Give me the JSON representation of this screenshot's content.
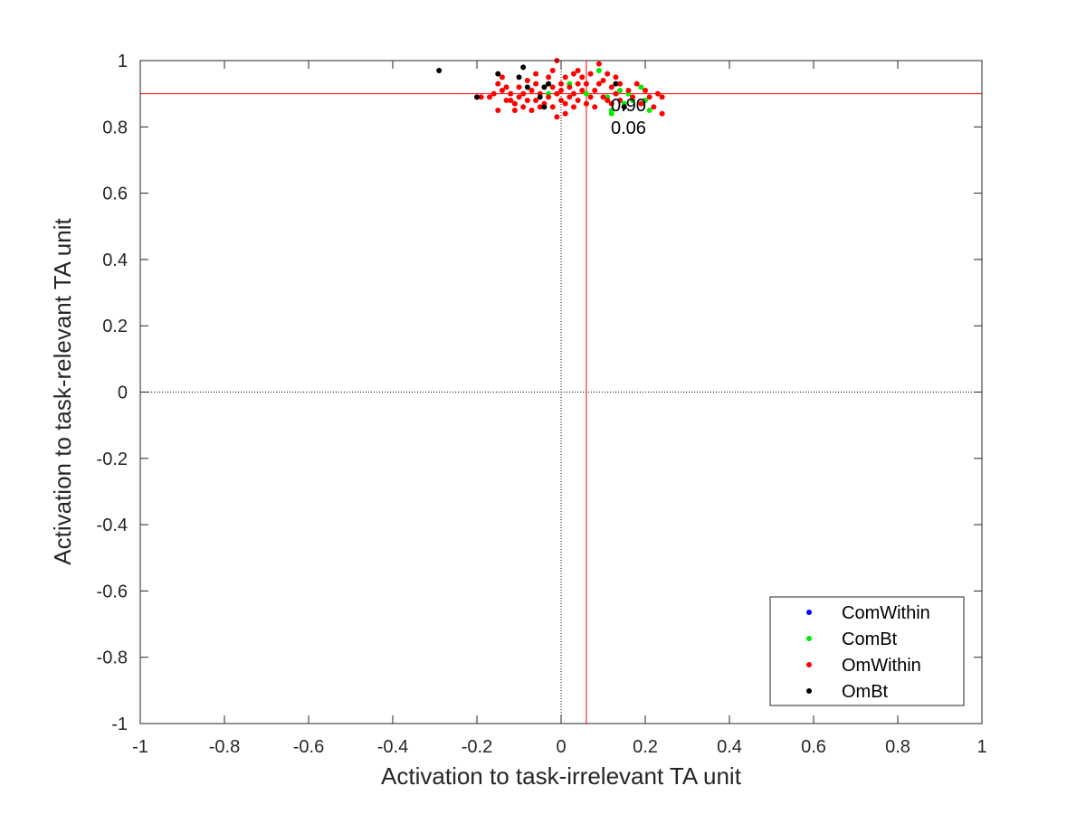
{
  "chart_data": {
    "type": "scatter",
    "title": "",
    "xlabel": "Activation to task-irrelevant TA unit",
    "ylabel": "Activation to task-relevant TA unit",
    "xlim": [
      -1,
      1
    ],
    "ylim": [
      -1,
      1
    ],
    "xticks": [
      "-1",
      "-0.8",
      "-0.6",
      "-0.4",
      "-0.2",
      "0",
      "0.2",
      "0.4",
      "0.6",
      "0.8",
      "1"
    ],
    "yticks": [
      "-1",
      "-0.8",
      "-0.6",
      "-0.4",
      "-0.2",
      "0",
      "0.2",
      "0.4",
      "0.6",
      "0.8",
      "1"
    ],
    "grid": false,
    "legend_position": "bottom-right",
    "reference_lines": {
      "zero_lines": {
        "style": "dotted",
        "color": "#000000"
      },
      "mean_x": 0.06,
      "mean_y": 0.9,
      "mean_color": "#ff0000"
    },
    "annotations": [
      "0.90",
      "0.06"
    ],
    "series": [
      {
        "name": "ComWithin",
        "color": "#0000ff",
        "points": []
      },
      {
        "name": "ComBt",
        "color": "#00ee00",
        "points": [
          [
            -0.03,
            0.9
          ],
          [
            0.02,
            0.93
          ],
          [
            0.06,
            0.9
          ],
          [
            0.09,
            0.97
          ],
          [
            0.11,
            0.89
          ],
          [
            0.12,
            0.85
          ],
          [
            0.12,
            0.84
          ],
          [
            0.14,
            0.91
          ],
          [
            0.15,
            0.87
          ],
          [
            0.16,
            0.9
          ],
          [
            0.17,
            0.88
          ],
          [
            0.19,
            0.92
          ],
          [
            0.21,
            0.85
          ],
          [
            0.2,
            0.88
          ]
        ]
      },
      {
        "name": "OmWithin",
        "color": "#ff0000",
        "points": [
          [
            -0.2,
            0.89
          ],
          [
            -0.19,
            0.89
          ],
          [
            -0.16,
            0.9
          ],
          [
            -0.15,
            0.93
          ],
          [
            -0.15,
            0.85
          ],
          [
            -0.14,
            0.95
          ],
          [
            -0.14,
            0.91
          ],
          [
            -0.13,
            0.92
          ],
          [
            -0.12,
            0.88
          ],
          [
            -0.12,
            0.9
          ],
          [
            -0.11,
            0.87
          ],
          [
            -0.11,
            0.85
          ],
          [
            -0.1,
            0.89
          ],
          [
            -0.1,
            0.92
          ],
          [
            -0.09,
            0.86
          ],
          [
            -0.09,
            0.9
          ],
          [
            -0.08,
            0.94
          ],
          [
            -0.08,
            0.88
          ],
          [
            -0.07,
            0.91
          ],
          [
            -0.07,
            0.85
          ],
          [
            -0.06,
            0.88
          ],
          [
            -0.06,
            0.93
          ],
          [
            -0.05,
            0.9
          ],
          [
            -0.05,
            0.86
          ],
          [
            -0.04,
            0.92
          ],
          [
            -0.04,
            0.87
          ],
          [
            -0.03,
            0.95
          ],
          [
            -0.03,
            0.89
          ],
          [
            -0.02,
            0.97
          ],
          [
            -0.02,
            0.92
          ],
          [
            -0.02,
            0.86
          ],
          [
            -0.01,
            1.0
          ],
          [
            -0.01,
            0.9
          ],
          [
            -0.01,
            0.83
          ],
          [
            0.0,
            0.93
          ],
          [
            0.0,
            0.88
          ],
          [
            0.0,
            0.91
          ],
          [
            0.01,
            0.95
          ],
          [
            0.01,
            0.87
          ],
          [
            0.02,
            0.92
          ],
          [
            0.02,
            0.89
          ],
          [
            0.03,
            0.96
          ],
          [
            0.03,
            0.9
          ],
          [
            0.03,
            0.86
          ],
          [
            0.04,
            0.93
          ],
          [
            0.04,
            0.88
          ],
          [
            0.05,
            0.95
          ],
          [
            0.05,
            0.91
          ],
          [
            0.06,
            0.87
          ],
          [
            0.06,
            0.93
          ],
          [
            0.07,
            0.89
          ],
          [
            0.07,
            0.96
          ],
          [
            0.08,
            0.91
          ],
          [
            0.08,
            0.86
          ],
          [
            0.09,
            0.99
          ],
          [
            0.09,
            0.93
          ],
          [
            0.1,
            0.89
          ],
          [
            0.1,
            0.94
          ],
          [
            0.11,
            0.88
          ],
          [
            0.12,
            0.92
          ],
          [
            0.12,
            0.87
          ],
          [
            0.13,
            0.95
          ],
          [
            0.13,
            0.9
          ],
          [
            0.14,
            0.88
          ],
          [
            0.14,
            0.93
          ],
          [
            0.15,
            0.86
          ],
          [
            0.16,
            0.91
          ],
          [
            0.17,
            0.89
          ],
          [
            0.18,
            0.93
          ],
          [
            0.19,
            0.87
          ],
          [
            0.2,
            0.91
          ],
          [
            0.21,
            0.89
          ],
          [
            0.22,
            0.86
          ],
          [
            0.23,
            0.9
          ],
          [
            0.24,
            0.89
          ],
          [
            0.24,
            0.84
          ],
          [
            -0.17,
            0.89
          ],
          [
            -0.13,
            0.88
          ],
          [
            -0.06,
            0.96
          ],
          [
            0.01,
            0.84
          ],
          [
            0.04,
            0.97
          ],
          [
            0.11,
            0.96
          ]
        ]
      },
      {
        "name": "OmBt",
        "color": "#000000",
        "points": [
          [
            -0.29,
            0.97
          ],
          [
            -0.2,
            0.89
          ],
          [
            -0.15,
            0.96
          ],
          [
            -0.1,
            0.95
          ],
          [
            -0.09,
            0.98
          ],
          [
            -0.08,
            0.92
          ],
          [
            -0.05,
            0.89
          ],
          [
            -0.04,
            0.92
          ],
          [
            -0.04,
            0.86
          ],
          [
            -0.03,
            0.93
          ],
          [
            0.13,
            0.93
          ],
          [
            0.15,
            0.86
          ]
        ]
      }
    ]
  }
}
